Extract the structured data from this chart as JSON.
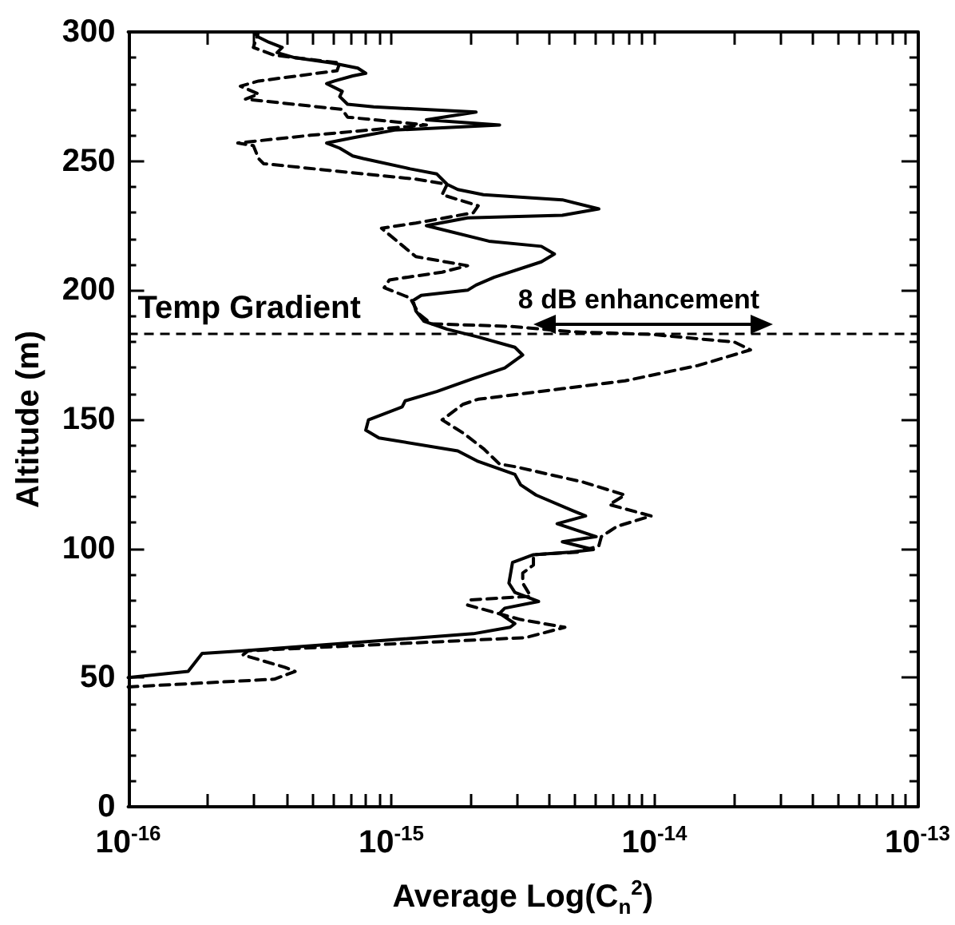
{
  "chart_data": {
    "type": "line",
    "xlabel": "Average Log(C$_{n}$$^{2}$)",
    "ylabel": "Altitude (m)",
    "log": "x",
    "grid": false,
    "xlim": [
      1e-16,
      1e-13
    ],
    "xticks": [
      {
        "value": 1e-16,
        "label": "10$^{-16}$"
      },
      {
        "value": 1e-15,
        "label": "10$^{-15}$"
      },
      {
        "value": 1e-14,
        "label": "10$^{-14}$"
      },
      {
        "value": 1e-13,
        "label": "10$^{-13}$"
      }
    ],
    "ylim": [
      0,
      300
    ],
    "yticks": [
      0,
      50,
      100,
      150,
      200,
      250,
      300
    ],
    "marker": "none",
    "ref_lines": [
      {
        "axis": "y",
        "value": 183,
        "label": "Temp Gradient",
        "line_style": "dashed",
        "color": "#000000"
      }
    ],
    "annotations": [
      "8 dB enhancement"
    ],
    "series": [
      {
        "color": "#000000",
        "line_style": "solid",
        "x": [
          1e-16,
          1.69e-16,
          1.91e-16,
          2.73e-16,
          2.05e-15,
          2.83e-15,
          2.95e-15,
          2.58e-15,
          2.7e-15,
          3.63e-15,
          2.95e-15,
          2.8e-15,
          2.89e-15,
          3.47e-15,
          4.79e-15,
          5.87e-15,
          4.47e-15,
          6.01e-15,
          4.27e-15,
          5.48e-15,
          4.9e-15,
          3.55e-15,
          3.1e-15,
          2.95e-15,
          2.14e-15,
          1.79e-15,
          8.98e-16,
          8e-16,
          8.19e-16,
          1.1e-15,
          1.13e-15,
          1.49e-15,
          2.05e-15,
          2.7e-15,
          3.16e-15,
          2.95e-15,
          2.14e-15,
          1.63e-15,
          1.33e-15,
          1.24e-15,
          1.21e-15,
          1.3e-15,
          1.95e-15,
          2.1e-15,
          2.46e-15,
          3.72e-15,
          4.17e-15,
          3.72e-15,
          2.35e-15,
          1.49e-15,
          1.36e-15,
          1.95e-15,
          4.47e-15,
          6.15e-15,
          4.47e-15,
          2.24e-15,
          1.79e-15,
          1.63e-15,
          1.49e-15,
          1.18e-15,
          7.83e-16,
          7.14e-16,
          6.37e-16,
          5.68e-16,
          7.14e-16,
          1.03e-15,
          2.58e-15,
          1.36e-15,
          2.1e-15,
          8.57e-16,
          6.82e-16,
          6.37e-16,
          6.51e-16,
          5.68e-16,
          6.08e-16,
          7.14e-16,
          8e-16,
          7.46e-16,
          5.94e-16,
          4.31e-16,
          3.68e-16,
          3.85e-16,
          3.43e-16,
          3.13e-16,
          2.99e-16
        ],
        "values": [
          50,
          52.4,
          59.4,
          60.4,
          67,
          69.5,
          70.9,
          74.9,
          76.9,
          79.5,
          83,
          86.6,
          94.6,
          97.6,
          98.6,
          99.6,
          102.6,
          104.6,
          109.6,
          112.6,
          114.6,
          120.7,
          124.7,
          128.7,
          133.7,
          137.8,
          142.8,
          145.8,
          149.8,
          154.8,
          157.2,
          160.8,
          165.8,
          169.9,
          174.9,
          177.9,
          181.9,
          184.9,
          188,
          192,
          196,
          198,
          200,
          202,
          205,
          211,
          214,
          217,
          219,
          224,
          225,
          228,
          229,
          231.5,
          235,
          237,
          239,
          241,
          245,
          247,
          251,
          252,
          255,
          257,
          259,
          262,
          264,
          266,
          269,
          271,
          272,
          275,
          277,
          280,
          281,
          283,
          284,
          286,
          288,
          290,
          292,
          294,
          296,
          298,
          300
        ]
      },
      {
        "color": "#000000",
        "line_style": "dashed",
        "x": [
          1e-16,
          3.59e-16,
          4.31e-16,
          3.94e-16,
          2.73e-16,
          2.86e-16,
          3.24e-15,
          4.57e-15,
          3.1e-15,
          1.95e-15,
          2e-15,
          3.39e-15,
          3.16e-15,
          3.16e-15,
          3.47e-15,
          3.47e-15,
          5.12e-15,
          6.15e-15,
          6.29e-15,
          7.22e-15,
          9.73e-15,
          6.74e-15,
          7.73e-15,
          5.37e-15,
          2.95e-15,
          2.58e-15,
          2.24e-15,
          1.87e-15,
          1.56e-15,
          1.87e-15,
          2.14e-15,
          4.47e-15,
          7.73e-15,
          1.47e-14,
          2.32e-14,
          2.02e-14,
          9.73e-15,
          4.9e-15,
          2.83e-15,
          1.42e-15,
          1.27e-15,
          1.18e-15,
          9.4e-16,
          9.84e-16,
          1.56e-15,
          1.95e-15,
          1.24e-15,
          9.18e-16,
          1.24e-15,
          2.05e-15,
          2.14e-15,
          1.56e-15,
          1.63e-15,
          1.24e-15,
          3.27e-16,
          3.13e-16,
          2.99e-16,
          2.61e-16,
          4.94e-16,
          1.36e-15,
          6.82e-16,
          6.51e-16,
          2.79e-16,
          3.13e-16,
          2.67e-16,
          3.13e-16,
          6.22e-16,
          6.37e-16,
          3.59e-16,
          2.99e-16,
          3.06e-16,
          3.13e-16
        ],
        "values": [
          46.4,
          49.4,
          52.4,
          54,
          58.8,
          60.4,
          65.5,
          69.5,
          72.5,
          78.1,
          80.1,
          81.5,
          86.6,
          90.5,
          93.6,
          97.6,
          98.6,
          101,
          104.6,
          108.6,
          112.6,
          117,
          120.7,
          125.7,
          131.7,
          132.7,
          138.7,
          144.8,
          149.8,
          155.8,
          157.8,
          161.9,
          164.9,
          170.9,
          176.9,
          179.9,
          182.9,
          183.9,
          186,
          187,
          191,
          197,
          201,
          204,
          207,
          209.5,
          213,
          224,
          226,
          230,
          232.7,
          237,
          241,
          243,
          249,
          251,
          256,
          257,
          260,
          264,
          267,
          270,
          274,
          276,
          279,
          281,
          285,
          288,
          291,
          294,
          297,
          300
        ]
      }
    ]
  }
}
